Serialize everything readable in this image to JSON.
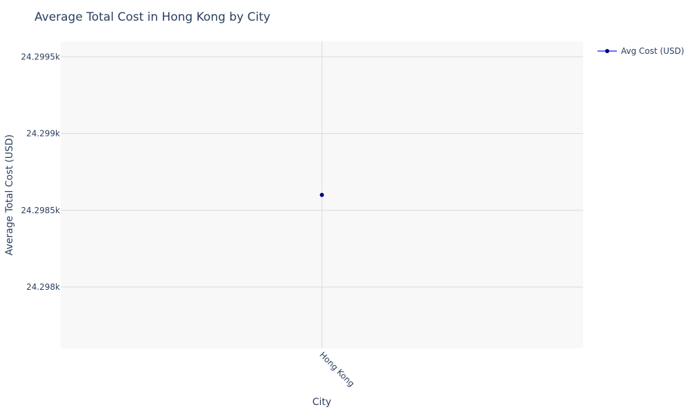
{
  "chart_data": {
    "type": "line",
    "title": "Average Total Cost in Hong Kong by City",
    "xlabel": "City",
    "ylabel": "Average Total Cost (USD)",
    "categories": [
      "Hong Kong"
    ],
    "series": [
      {
        "name": "Avg Cost (USD)",
        "values": [
          24298.6
        ]
      }
    ],
    "ylim": [
      24297.6,
      24299.6
    ],
    "yticks": [
      24298,
      24298.5,
      24299,
      24299.5
    ],
    "ytick_labels": [
      "24.298k",
      "24.2985k",
      "24.299k",
      "24.2995k"
    ],
    "grid": true,
    "legend_position": "top-right",
    "colors": {
      "series_line": "#636efa",
      "series_marker": "#000080",
      "plot_bg": "#f8f8f8",
      "grid": "#d9d9d9",
      "text": "#2a3f5f"
    }
  }
}
